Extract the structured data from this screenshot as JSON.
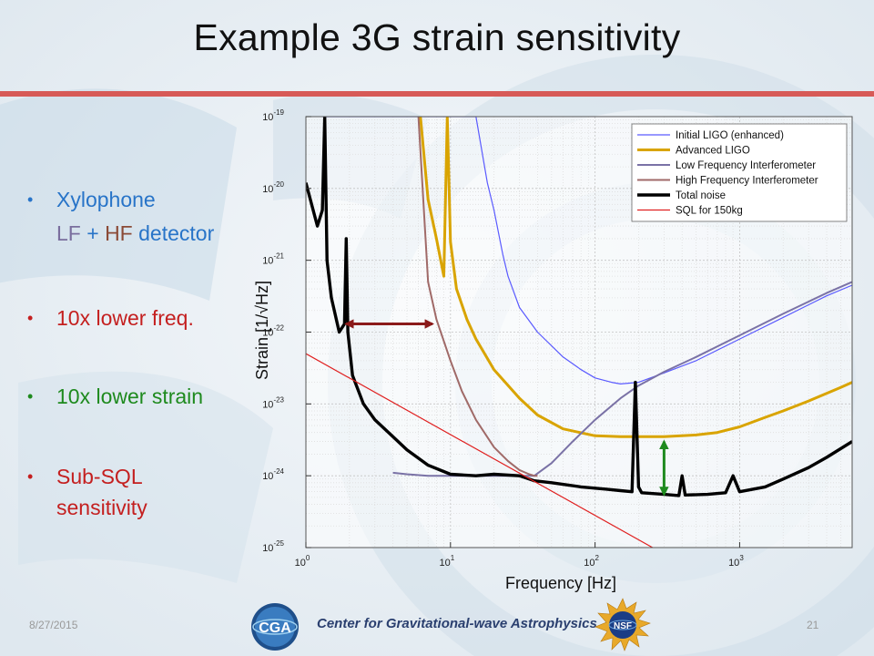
{
  "slide": {
    "title": "Example 3G strain sensitivity",
    "footer_date": "8/27/2015",
    "footer_org": "Center for Gravitational-wave Astrophysics",
    "page_number": "21",
    "logo_left_text": "CGA",
    "logo_right_text": "NSF",
    "colors": {
      "title_rule": "#d75a57",
      "blue_text": "#2874c8",
      "lf_purple": "#7a6e9e",
      "hf_brown": "#8b4a36",
      "red_text": "#c41f1f",
      "green_text": "#1e8a1e"
    }
  },
  "bullets": [
    {
      "parts": [
        "Xylophone"
      ]
    },
    {
      "parts": [
        "LF",
        " + ",
        "HF",
        " detector"
      ]
    },
    {
      "parts": [
        "10x lower freq."
      ]
    },
    {
      "parts": [
        "10x lower strain"
      ]
    },
    {
      "parts": [
        "Sub-SQL"
      ]
    },
    {
      "parts": [
        "sensitivity"
      ]
    }
  ],
  "chart_data": {
    "type": "line",
    "xlabel": "Frequency [Hz]",
    "ylabel": "Strain [1/√Hz]",
    "xscale": "log",
    "yscale": "log",
    "xlim": [
      1,
      6000
    ],
    "ylim": [
      1e-25,
      1e-19
    ],
    "x_ticks": [
      "10^0",
      "10^1",
      "10^2",
      "10^3"
    ],
    "y_ticks": [
      "10^-25",
      "10^-24",
      "10^-23",
      "10^-22",
      "10^-21",
      "10^-20",
      "10^-19"
    ],
    "grid": true,
    "legend_position": "top-right",
    "series": [
      {
        "name": "Initial LIGO (enhanced)",
        "color": "#5a5aff",
        "x": [
          1.3,
          3,
          5,
          7,
          10,
          13,
          15,
          18,
          20,
          23,
          25,
          30,
          40,
          60,
          80,
          100,
          130,
          150,
          200,
          300,
          500,
          1000,
          2000,
          4000,
          6000
        ],
        "y": [
          1e-19,
          1e-19,
          1e-19,
          1e-19,
          1e-19,
          1e-19,
          1e-19,
          1.2e-20,
          5e-21,
          1.2e-21,
          6e-22,
          2.2e-22,
          1e-22,
          4.5e-23,
          3e-23,
          2.3e-23,
          2e-23,
          1.9e-23,
          2e-23,
          2.7e-23,
          4e-23,
          8e-23,
          1.6e-22,
          3.2e-22,
          4.5e-22
        ]
      },
      {
        "name": "Advanced LIGO",
        "color": "#d9a400",
        "x": [
          6.2,
          7,
          8,
          9,
          9.5,
          10,
          11,
          13,
          15,
          20,
          30,
          40,
          60,
          100,
          150,
          200,
          300,
          500,
          700,
          1000,
          1500,
          2000,
          3000,
          5000,
          6000
        ],
        "y": [
          1e-19,
          7e-21,
          2e-21,
          6e-22,
          1e-19,
          1.8e-21,
          4e-22,
          1.5e-22,
          8e-23,
          3e-23,
          1.2e-23,
          7e-24,
          4.5e-24,
          3.6e-24,
          3.5e-24,
          3.5e-24,
          3.5e-24,
          3.7e-24,
          4e-24,
          4.8e-24,
          6.5e-24,
          8e-24,
          1.1e-23,
          1.7e-23,
          2e-23
        ]
      },
      {
        "name": "Low Frequency Interferometer",
        "color": "#7a72a6",
        "x": [
          4,
          5,
          7,
          10,
          15,
          20,
          30,
          38,
          50,
          70,
          100,
          150,
          200,
          300,
          500,
          1000,
          2000,
          4000,
          6000
        ],
        "y": [
          1.1e-24,
          1.05e-24,
          1e-24,
          1e-24,
          1e-24,
          1e-24,
          1e-24,
          1e-24,
          1.5e-24,
          3e-24,
          6e-24,
          1.2e-23,
          1.8e-23,
          2.8e-23,
          4.5e-23,
          9e-23,
          1.8e-22,
          3.5e-22,
          5e-22
        ]
      },
      {
        "name": "High Frequency Interferometer",
        "color": "#a06a68",
        "x": [
          6,
          7,
          8,
          10,
          12,
          15,
          20,
          25,
          30,
          35,
          38,
          40
        ],
        "y": [
          1e-19,
          5e-22,
          1.5e-22,
          4e-23,
          1.5e-23,
          6e-24,
          2.5e-24,
          1.6e-24,
          1.2e-24,
          1.05e-24,
          1e-24,
          1e-24
        ]
      },
      {
        "name": "Total noise",
        "color": "#000000",
        "x": [
          1,
          1.2,
          1.3,
          1.35,
          1.4,
          1.5,
          1.7,
          1.85,
          1.9,
          1.95,
          2.1,
          2.5,
          3,
          4,
          5,
          7,
          10,
          15,
          20,
          30,
          38,
          50,
          80,
          120,
          150,
          180,
          190,
          200,
          210,
          300,
          380,
          400,
          420,
          600,
          800,
          900,
          1000,
          1500,
          2000,
          3000,
          4000,
          6000
        ],
        "y": [
          1.2e-20,
          3e-21,
          5e-21,
          1e-19,
          1e-21,
          3e-22,
          1e-22,
          1.3e-22,
          2e-21,
          1e-22,
          2.5e-23,
          1e-23,
          6e-24,
          3.5e-24,
          2.3e-24,
          1.4e-24,
          1.05e-24,
          1e-24,
          1.05e-24,
          1e-24,
          8.5e-25,
          8e-25,
          7e-25,
          6.5e-25,
          6.2e-25,
          6e-25,
          2e-23,
          7e-25,
          5.8e-25,
          5.5e-25,
          5.3e-25,
          1e-24,
          5.4e-25,
          5.5e-25,
          5.8e-25,
          1e-24,
          6e-25,
          7e-25,
          9e-25,
          1.3e-24,
          1.8e-24,
          3e-24
        ]
      },
      {
        "name": "SQL for 150kg",
        "color": "#e02020",
        "x": [
          1,
          250
        ],
        "y": [
          5e-23,
          1e-25
        ]
      }
    ],
    "annotations": [
      {
        "type": "double-arrow",
        "color": "#8b1a1a",
        "x": [
          1.9,
          7.5
        ],
        "y": [
          1.3e-22,
          1.3e-22
        ]
      },
      {
        "type": "double-arrow",
        "color": "#1e8a1e",
        "x": [
          300,
          300
        ],
        "y": [
          3e-24,
          5.5e-25
        ]
      }
    ]
  }
}
